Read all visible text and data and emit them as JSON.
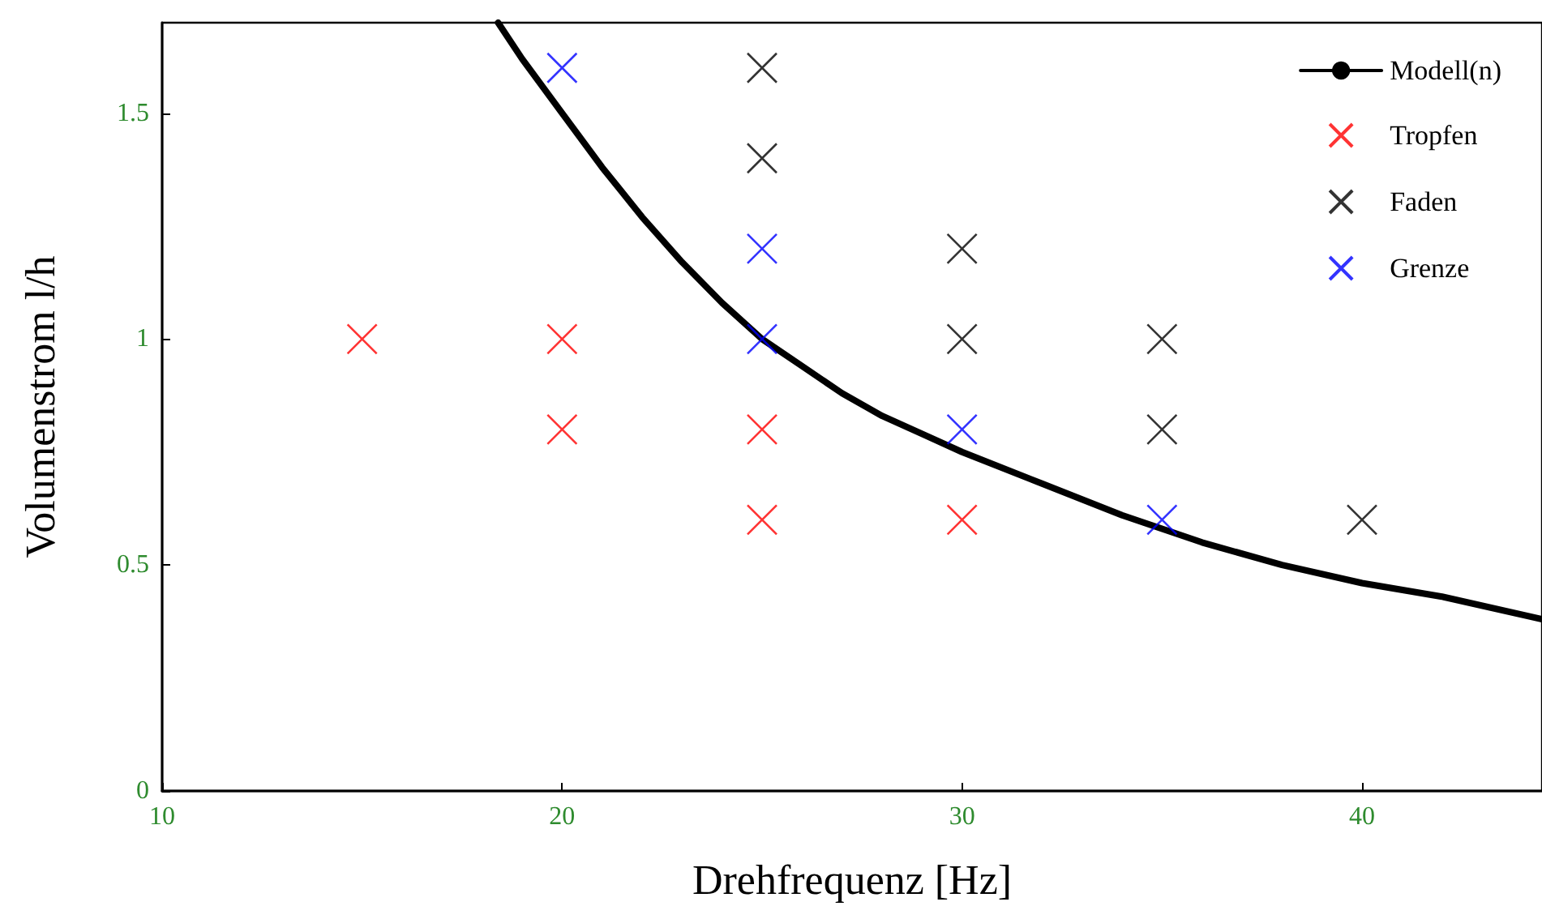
{
  "chart_data": {
    "type": "scatter",
    "xlabel": "Drehfrequenz [Hz]",
    "ylabel": "Volumenstrom l/h",
    "xlim": [
      10,
      44.5
    ],
    "ylim": [
      0,
      1.7
    ],
    "xticks": [
      10,
      20,
      30,
      40
    ],
    "yticks": [
      0,
      0.5,
      1,
      1.5
    ],
    "grid": false,
    "legend": "top right",
    "marker": "cross",
    "series": [
      {
        "name": "Modell(n)",
        "type": "line",
        "color": "#000000",
        "marker": "none",
        "line_style": "solid",
        "x": [
          18.4,
          19,
          20,
          21,
          22,
          23,
          24,
          25,
          26,
          27,
          28,
          29,
          30,
          32,
          34,
          35,
          36,
          38,
          40,
          42,
          44.5
        ],
        "values": [
          1.7,
          1.62,
          1.5,
          1.38,
          1.27,
          1.17,
          1.08,
          1.0,
          0.94,
          0.88,
          0.83,
          0.79,
          0.75,
          0.68,
          0.61,
          0.58,
          0.55,
          0.5,
          0.46,
          0.43,
          0.38
        ]
      },
      {
        "name": "Tropfen",
        "color": "#ff0000",
        "x": [
          15,
          20,
          20,
          25,
          25,
          30
        ],
        "values": [
          1.0,
          1.0,
          0.8,
          0.8,
          0.6,
          0.6
        ]
      },
      {
        "name": "Faden",
        "color": "#000000",
        "x": [
          25,
          25,
          30,
          30,
          35,
          35,
          40
        ],
        "values": [
          1.6,
          1.4,
          1.2,
          1.0,
          1.0,
          0.8,
          0.6
        ]
      },
      {
        "name": "Grenze",
        "color": "#0000ff",
        "x": [
          20,
          25,
          25,
          30,
          35
        ],
        "values": [
          1.6,
          1.2,
          1.0,
          0.8,
          0.6
        ]
      }
    ]
  }
}
